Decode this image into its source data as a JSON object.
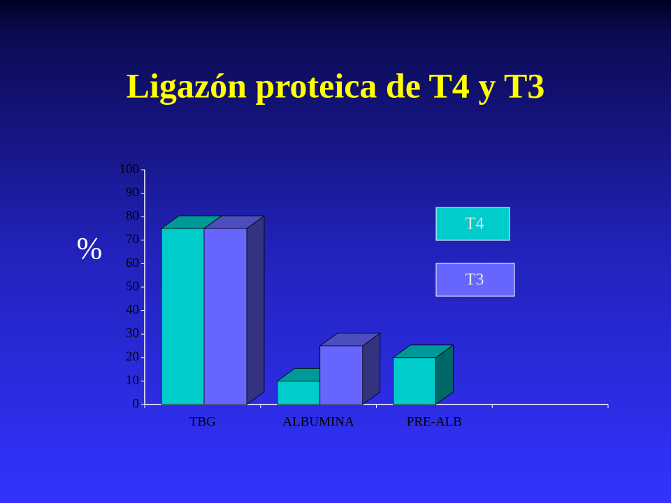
{
  "chart_data": {
    "type": "bar3d",
    "title": "Ligazón proteica de T4 y T3",
    "y_label": "%",
    "categories": [
      "TBG",
      "ALBUMINA",
      "PRE-ALB",
      null
    ],
    "series": [
      {
        "name": "T4",
        "color": "#00cccc",
        "values": [
          75,
          10,
          20,
          null
        ]
      },
      {
        "name": "T3",
        "color": "#6666ff",
        "values": [
          75,
          25,
          null,
          null
        ]
      }
    ],
    "ylim": [
      0,
      100
    ],
    "yticks": [
      0,
      10,
      20,
      30,
      40,
      50,
      60,
      70,
      80,
      90,
      100
    ],
    "grid": false,
    "legend": "right"
  }
}
